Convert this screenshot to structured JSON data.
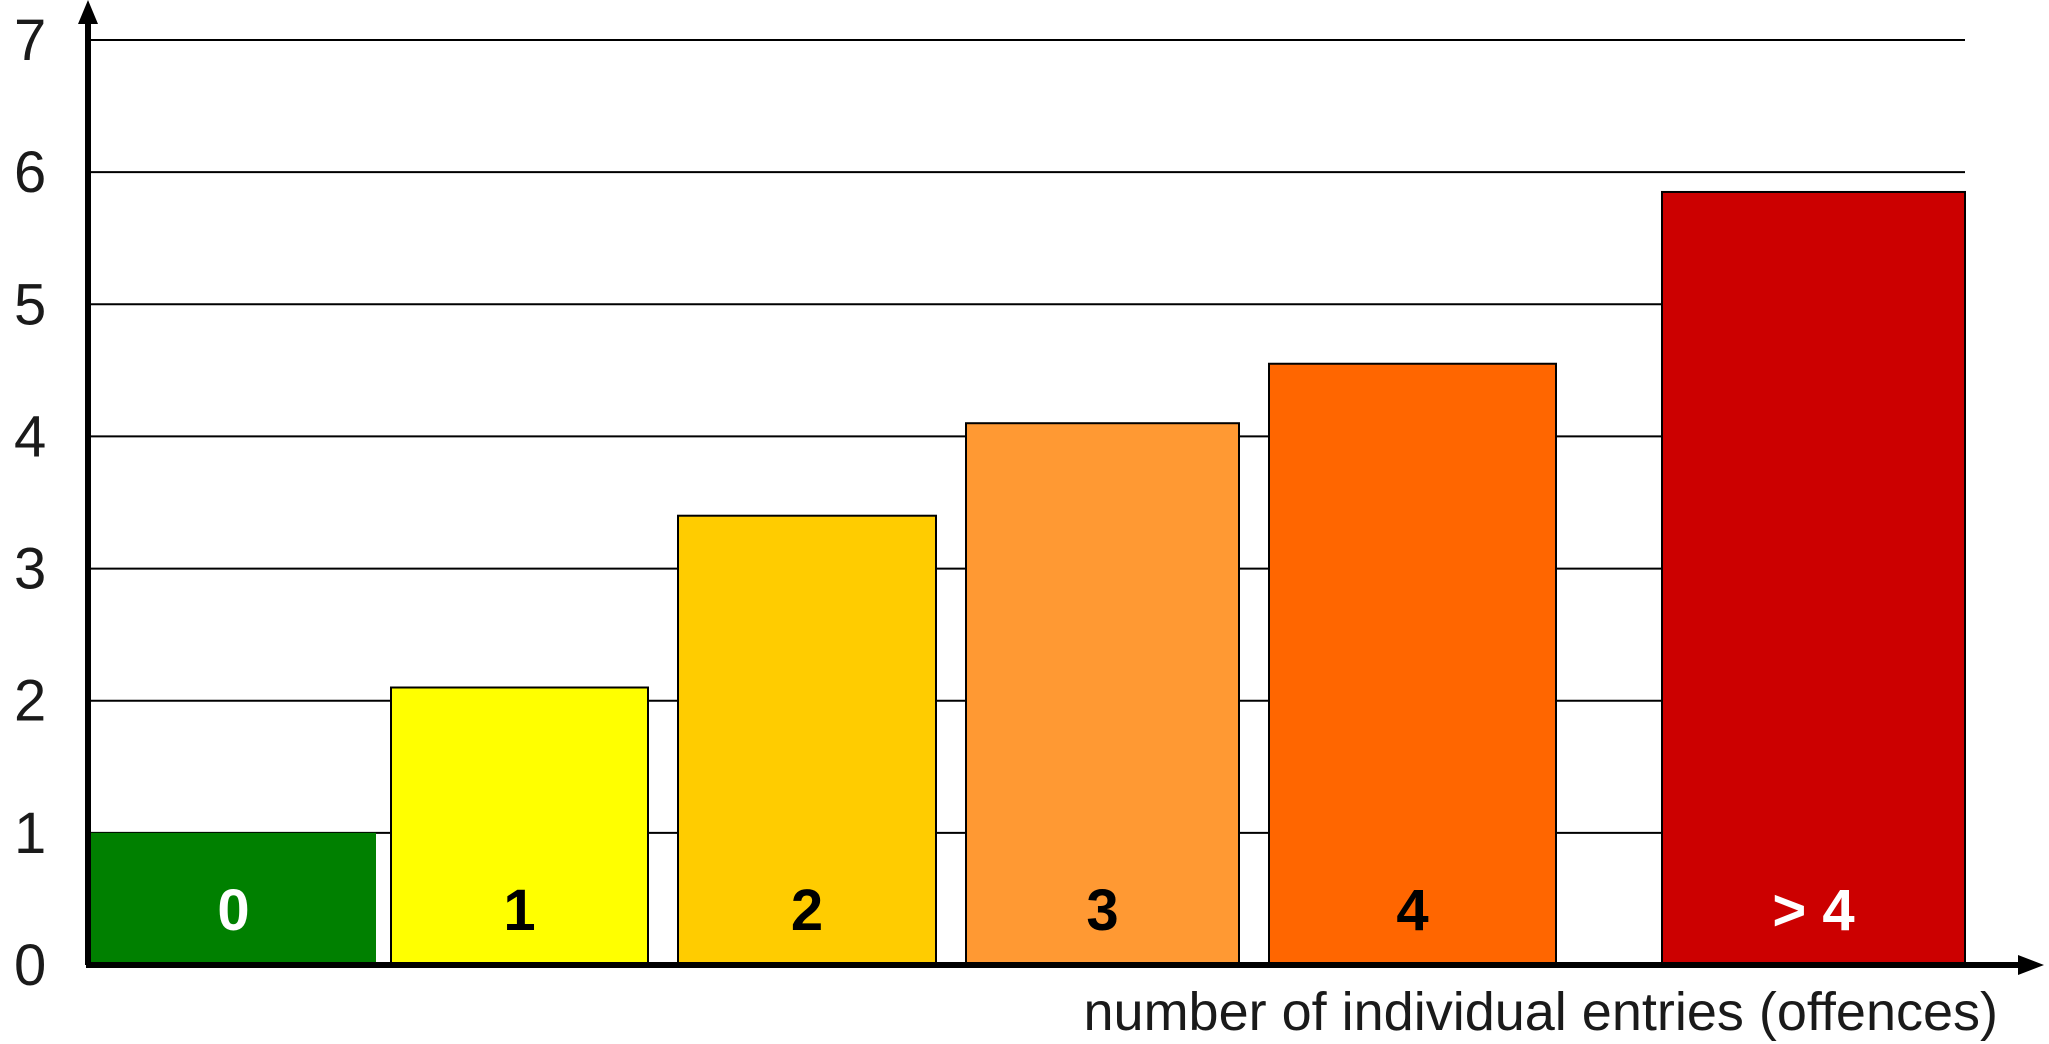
{
  "chart_data": {
    "type": "bar",
    "title": "",
    "xlabel": "number of individual entries (offences)",
    "ylabel": "",
    "ylim": [
      0,
      7
    ],
    "yticks": [
      "0",
      "1",
      "2",
      "3",
      "4",
      "5",
      "6",
      "7"
    ],
    "grid": true,
    "categories": [
      "0",
      "1",
      "2",
      "3",
      "4",
      "> 4"
    ],
    "values": [
      1.0,
      2.1,
      3.4,
      4.1,
      4.55,
      5.85
    ],
    "colors": [
      "#008000",
      "#ffff00",
      "#ffcc00",
      "#ff9933",
      "#ff6600",
      "#cc0000"
    ],
    "label_colors": [
      "#ffffff",
      "#000000",
      "#000000",
      "#000000",
      "#000000",
      "#ffffff"
    ]
  }
}
